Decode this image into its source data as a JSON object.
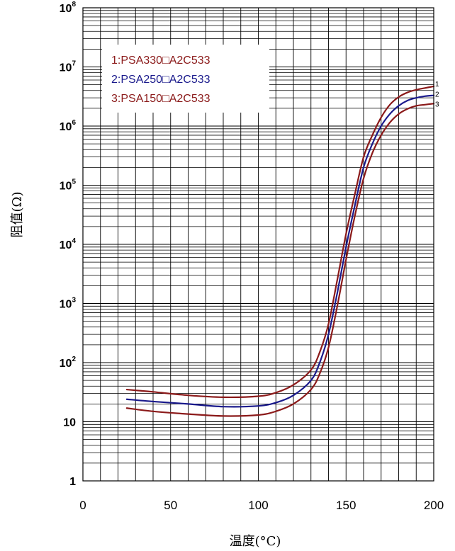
{
  "chart_data": {
    "type": "line",
    "xlabel": "温度(°C)",
    "ylabel": "阻值(Ω)",
    "xlim": [
      0,
      200
    ],
    "ylim": [
      1,
      100000000
    ],
    "yscale": "log",
    "grid": true,
    "legend_position": "top-left",
    "x_ticks": [
      "0",
      "50",
      "100",
      "150",
      "200"
    ],
    "y_ticks": [
      {
        "base": "1",
        "exp": ""
      },
      {
        "base": "10",
        "exp": ""
      },
      {
        "base": "10",
        "exp": "2"
      },
      {
        "base": "10",
        "exp": "3"
      },
      {
        "base": "10",
        "exp": "4"
      },
      {
        "base": "10",
        "exp": "5"
      },
      {
        "base": "10",
        "exp": "6"
      },
      {
        "base": "10",
        "exp": "7"
      },
      {
        "base": "10",
        "exp": "8"
      }
    ],
    "series": [
      {
        "name": "1:PSA330□A2C533",
        "end_label": "1",
        "color": "#8b1a1a",
        "x": [
          25,
          40,
          60,
          80,
          100,
          110,
          120,
          130,
          135,
          140,
          145,
          150,
          155,
          160,
          165,
          170,
          175,
          180,
          185,
          190,
          195,
          200
        ],
        "y": [
          35,
          32,
          28,
          26,
          27,
          31,
          42,
          75,
          150,
          450,
          2500,
          15000,
          70000,
          300000,
          700000,
          1400000,
          2300000,
          3100000,
          3700000,
          4100000,
          4400000,
          4700000
        ]
      },
      {
        "name": "2:PSA250□A2C533",
        "end_label": "2",
        "color": "#1a1a8c",
        "x": [
          25,
          40,
          60,
          80,
          100,
          110,
          120,
          130,
          135,
          140,
          145,
          150,
          155,
          160,
          165,
          170,
          175,
          180,
          185,
          190,
          195,
          200
        ],
        "y": [
          24,
          22,
          20,
          18,
          18.5,
          21,
          28,
          50,
          100,
          300,
          1500,
          9000,
          45000,
          200000,
          500000,
          1000000,
          1600000,
          2200000,
          2700000,
          3000000,
          3200000,
          3300000
        ]
      },
      {
        "name": "3:PSA150□A2C533",
        "end_label": "3",
        "color": "#8b1a1a",
        "x": [
          25,
          40,
          60,
          80,
          100,
          110,
          120,
          130,
          135,
          140,
          145,
          150,
          155,
          160,
          165,
          170,
          175,
          180,
          185,
          190,
          195,
          200
        ],
        "y": [
          17,
          15,
          13.5,
          12.5,
          13,
          15,
          20,
          35,
          65,
          180,
          900,
          5500,
          30000,
          130000,
          350000,
          700000,
          1150000,
          1600000,
          1950000,
          2200000,
          2300000,
          2400000
        ]
      }
    ]
  }
}
